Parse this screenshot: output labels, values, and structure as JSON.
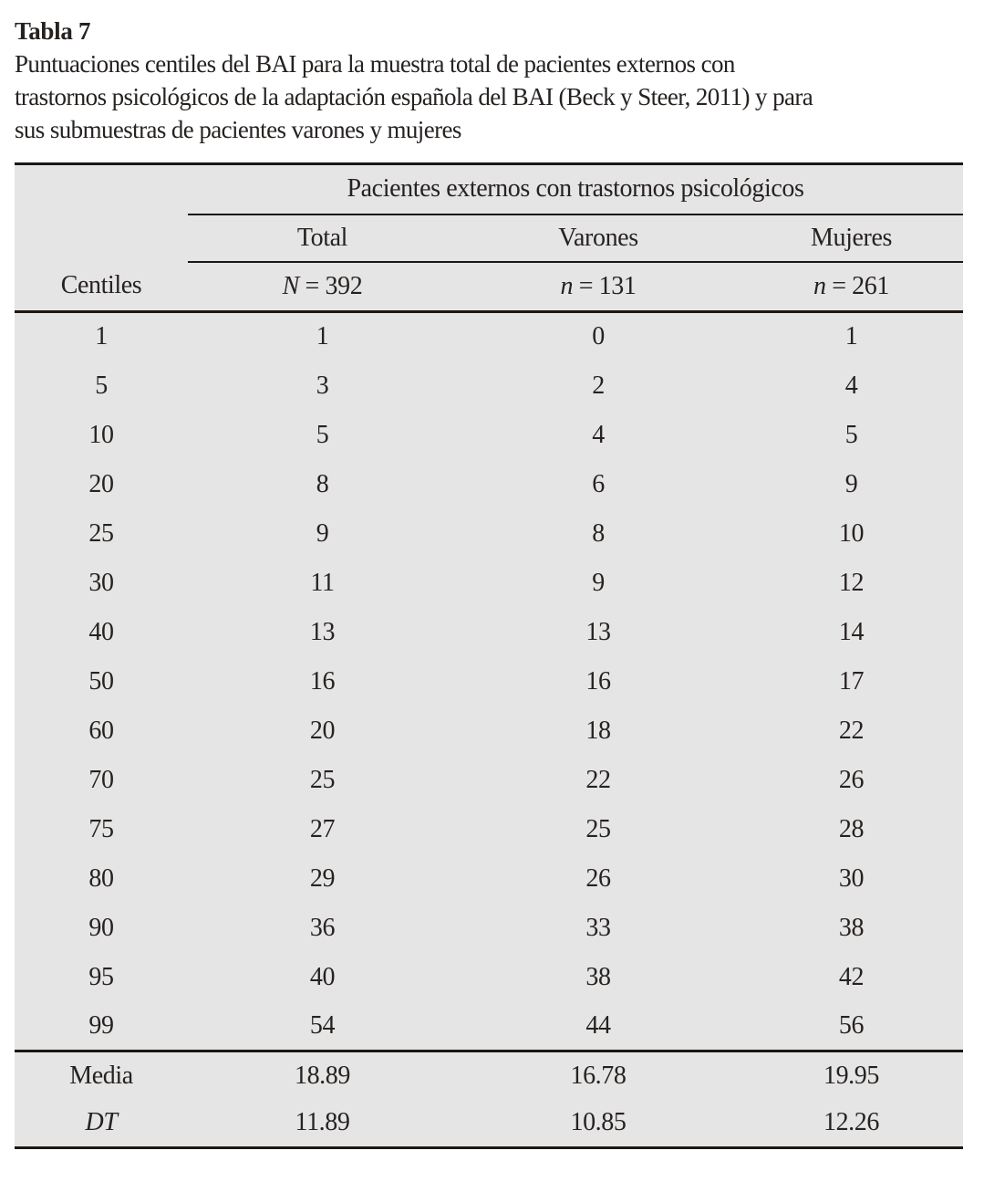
{
  "page": {
    "table_label": "Tabla 7",
    "caption_lines": [
      "Puntuaciones centiles del BAI para la muestra total de pacientes externos con",
      "trastornos psicológicos de la adaptación española del BAI (Beck y Steer, 2011) y para",
      "sus submuestras de pacientes varones y mujeres"
    ]
  },
  "table": {
    "spanner": "Pacientes externos con trastornos psicológicos",
    "stub_head": "Centiles",
    "groups": [
      "Total",
      "Varones",
      "Mujeres"
    ],
    "sizes": [
      {
        "symbol": "N",
        "rest": " = 392"
      },
      {
        "symbol": "n",
        "rest": " = 131"
      },
      {
        "symbol": "n",
        "rest": " = 261"
      }
    ],
    "rows": [
      {
        "label": "1",
        "values": [
          "1",
          "0",
          "1"
        ]
      },
      {
        "label": "5",
        "values": [
          "3",
          "2",
          "4"
        ]
      },
      {
        "label": "10",
        "values": [
          "5",
          "4",
          "5"
        ]
      },
      {
        "label": "20",
        "values": [
          "8",
          "6",
          "9"
        ]
      },
      {
        "label": "25",
        "values": [
          "9",
          "8",
          "10"
        ]
      },
      {
        "label": "30",
        "values": [
          "11",
          "9",
          "12"
        ]
      },
      {
        "label": "40",
        "values": [
          "13",
          "13",
          "14"
        ]
      },
      {
        "label": "50",
        "values": [
          "16",
          "16",
          "17"
        ]
      },
      {
        "label": "60",
        "values": [
          "20",
          "18",
          "22"
        ]
      },
      {
        "label": "70",
        "values": [
          "25",
          "22",
          "26"
        ]
      },
      {
        "label": "75",
        "values": [
          "27",
          "25",
          "28"
        ]
      },
      {
        "label": "80",
        "values": [
          "29",
          "26",
          "30"
        ]
      },
      {
        "label": "90",
        "values": [
          "36",
          "33",
          "38"
        ]
      },
      {
        "label": "95",
        "values": [
          "40",
          "38",
          "42"
        ]
      },
      {
        "label": "99",
        "values": [
          "54",
          "44",
          "56"
        ]
      }
    ],
    "summary": [
      {
        "label": "Media",
        "italic": false,
        "values": [
          "18.89",
          "16.78",
          "19.95"
        ]
      },
      {
        "label": "DT",
        "italic": true,
        "values": [
          "11.89",
          "10.85",
          "12.26"
        ]
      }
    ]
  },
  "colors": {
    "table_background": "#e6e5e5",
    "rule": "#1b1714",
    "text": "#262220",
    "page_background": "#ffffff"
  }
}
